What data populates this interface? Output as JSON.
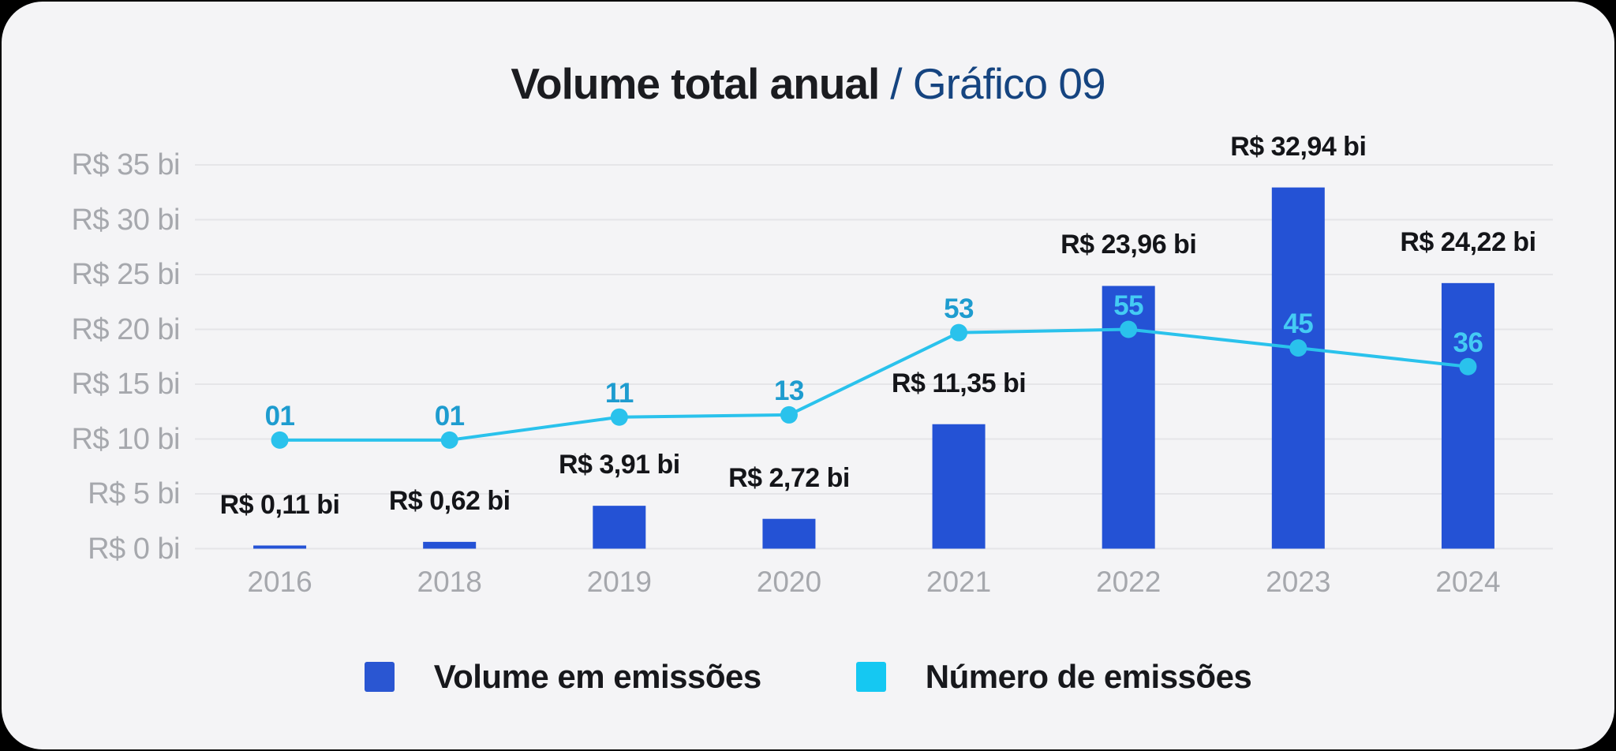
{
  "title": {
    "main": "Volume total anual",
    "suffix": "/ Gráfico 09"
  },
  "legend": {
    "items": [
      {
        "label": "Volume em emissões",
        "color": "#2a56d2"
      },
      {
        "label": "Número de emissões",
        "color": "#15c8f2"
      }
    ]
  },
  "colors": {
    "page_bg": "#000000",
    "card_bg": "#f4f4f6",
    "gridline": "#e5e5e8",
    "bar": "#2452d5",
    "line": "#2ac2ec",
    "count_label_on_light": "#1e9ccf",
    "count_label_on_bar": "#44cbf4",
    "value_label": "#141519",
    "axis_label": "#a6a8ad",
    "title_main": "#1b1c20",
    "title_suffix": "#154480",
    "legend_text": "#17181c"
  },
  "chart_data": {
    "type": "bar+line",
    "title": "Volume total anual / Gráfico 09",
    "categories": [
      "2016",
      "2018",
      "2019",
      "2020",
      "2021",
      "2022",
      "2023",
      "2024"
    ],
    "series": [
      {
        "name": "Volume em emissões",
        "type": "bar",
        "unit": "R$ bi",
        "values": [
          0.11,
          0.62,
          3.91,
          2.72,
          11.35,
          23.96,
          32.94,
          24.22
        ],
        "labels": [
          "R$ 0,11 bi",
          "R$ 0,62 bi",
          "R$ 3,91 bi",
          "R$ 2,72 bi",
          "R$ 11,35 bi",
          "R$ 23,96 bi",
          "R$ 32,94 bi",
          "R$ 24,22 bi"
        ]
      },
      {
        "name": "Número de emissões",
        "type": "line",
        "values": [
          1,
          1,
          11,
          13,
          53,
          55,
          45,
          36
        ],
        "labels": [
          "01",
          "01",
          "11",
          "13",
          "53",
          "55",
          "45",
          "36"
        ]
      }
    ],
    "yaxis": {
      "min": 0,
      "max": 35,
      "step": 5,
      "ticks": [
        {
          "value": 0,
          "label": "R$ 0 bi"
        },
        {
          "value": 5,
          "label": "R$ 5 bi"
        },
        {
          "value": 10,
          "label": "R$ 10 bi"
        },
        {
          "value": 15,
          "label": "R$ 15 bi"
        },
        {
          "value": 20,
          "label": "R$ 20 bi"
        },
        {
          "value": 25,
          "label": "R$ 25 bi"
        },
        {
          "value": 30,
          "label": "R$ 30 bi"
        },
        {
          "value": 35,
          "label": "R$ 35 bi"
        }
      ]
    },
    "layout_hints": {
      "grid": "horizontal",
      "legend_position": "bottom",
      "secondary_axis_visible": false,
      "line_y_in_left_axis_units": [
        9.9,
        9.9,
        12.0,
        12.2,
        19.7,
        20.0,
        18.3,
        16.6
      ],
      "count_label_on_bar": [
        false,
        false,
        false,
        false,
        false,
        true,
        true,
        true
      ]
    }
  }
}
